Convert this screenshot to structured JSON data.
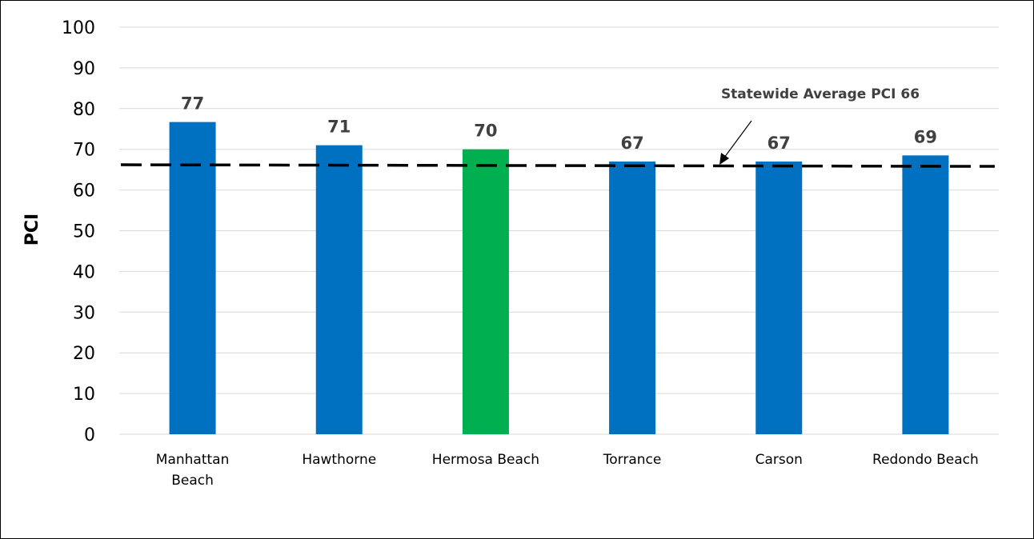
{
  "chart_data": {
    "type": "bar",
    "title": "",
    "xlabel": "",
    "ylabel": "PCI",
    "ylim": [
      0,
      100
    ],
    "yticks": [
      0,
      10,
      20,
      30,
      40,
      50,
      60,
      70,
      80,
      90,
      100
    ],
    "grid": true,
    "categories": [
      "Manhattan Beach",
      "Hawthorne",
      "Hermosa Beach",
      "Torrance",
      "Carson",
      "Redondo Beach"
    ],
    "values": [
      76.7,
      71,
      70,
      67,
      67,
      68.5
    ],
    "data_labels": [
      "77",
      "71",
      "70",
      "67",
      "67",
      "69"
    ],
    "bar_colors": [
      "#0070c0",
      "#0070c0",
      "#00b050",
      "#0070c0",
      "#0070c0",
      "#0070c0"
    ],
    "reference_line": {
      "value": 66,
      "style": "dashed",
      "color": "#000000",
      "label": "Statewide Average PCI 66"
    }
  }
}
